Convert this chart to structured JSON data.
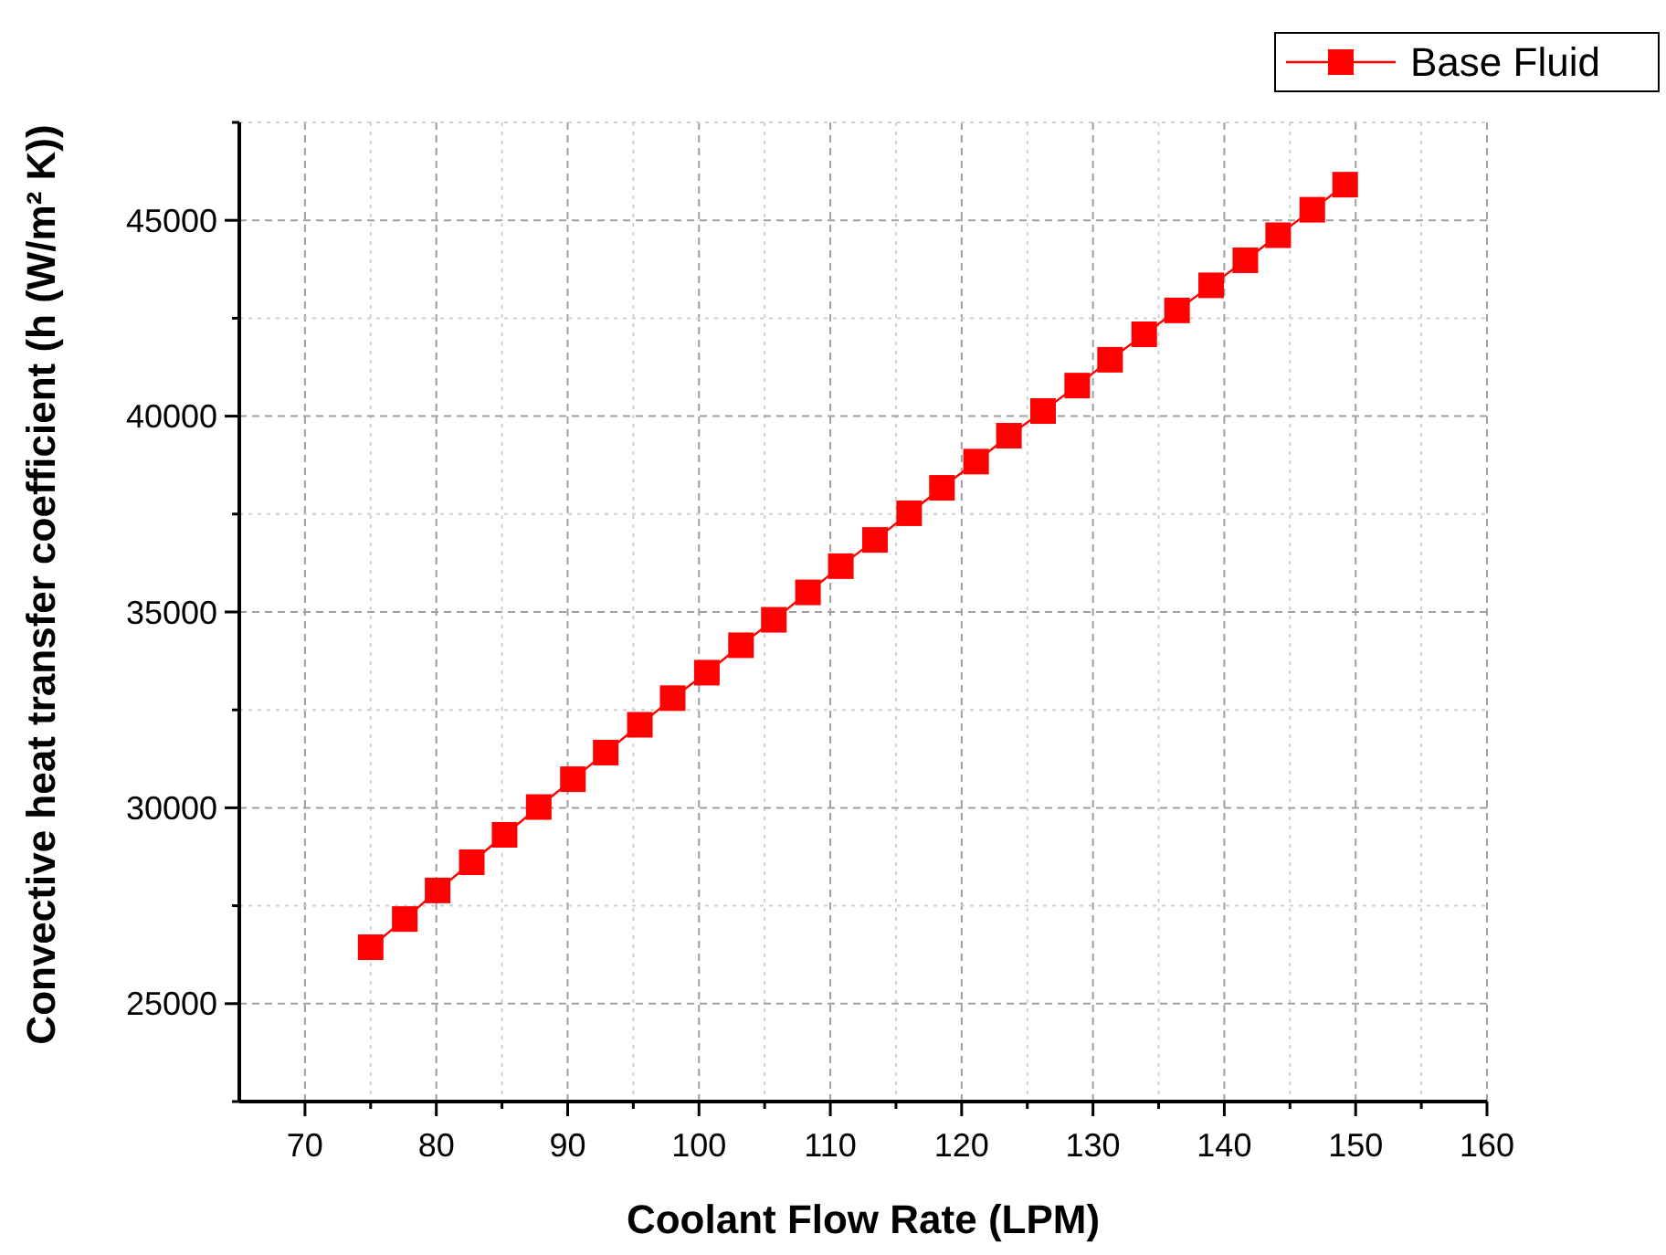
{
  "chart_data": {
    "type": "line",
    "xlabel": "Coolant Flow Rate (LPM)",
    "ylabel": "Convective heat transfer coefficient (h (W/m² K))",
    "xlim": [
      65,
      160
    ],
    "ylim": [
      22500,
      47500
    ],
    "xticks": [
      70,
      {
        "value": 75,
        "label": null
      },
      80,
      {
        "value": 85,
        "label": null
      },
      90,
      {
        "value": 95,
        "label": null
      },
      100,
      {
        "value": 105,
        "label": null
      },
      110,
      {
        "value": 115,
        "label": null
      },
      120,
      {
        "value": 125,
        "label": null
      },
      130,
      {
        "value": 135,
        "label": null
      },
      140,
      {
        "value": 145,
        "label": null
      },
      150,
      {
        "value": 155,
        "label": null
      },
      160
    ],
    "yticks": [
      {
        "value": 22500,
        "label": null
      },
      25000,
      {
        "value": 27500,
        "label": null
      },
      30000,
      {
        "value": 32500,
        "label": null
      },
      35000,
      {
        "value": 37500,
        "label": null
      },
      40000,
      {
        "value": 42500,
        "label": null
      },
      45000,
      {
        "value": 47500,
        "label": null
      }
    ],
    "grid": true,
    "legend": "top right",
    "marker": "square",
    "line_style": "solid",
    "series": [
      {
        "name": "Base Fluid",
        "color": "#ff0000",
        "x": [
          75,
          77.6,
          80.1,
          82.7,
          85.2,
          87.8,
          90.4,
          92.9,
          95.5,
          98.0,
          100.6,
          103.2,
          105.7,
          108.3,
          110.8,
          113.4,
          116.0,
          118.5,
          121.1,
          123.6,
          126.2,
          128.8,
          131.3,
          133.9,
          136.4,
          139.0,
          141.6,
          144.1,
          146.7,
          149.2
        ],
        "values": [
          26440,
          27160,
          27890,
          28610,
          29310,
          30020,
          30730,
          31410,
          32120,
          32800,
          33450,
          34150,
          34800,
          35500,
          36170,
          36840,
          37520,
          38170,
          38840,
          39500,
          40130,
          40780,
          41440,
          42090,
          42700,
          43340,
          43980,
          44620,
          45270,
          45910
        ]
      }
    ]
  }
}
